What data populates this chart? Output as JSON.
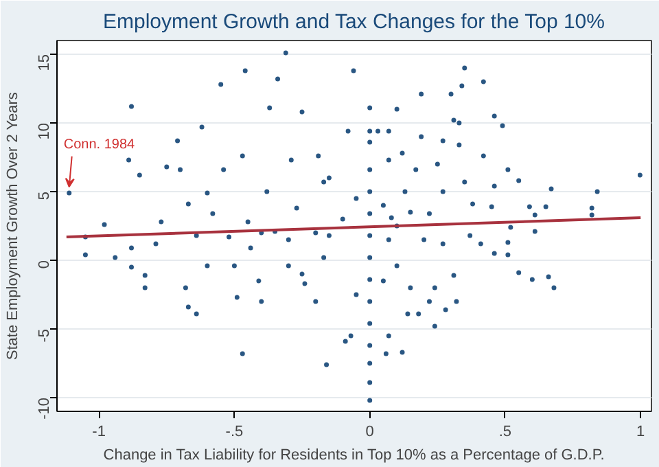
{
  "chart_data": {
    "type": "scatter",
    "title": "Employment Growth and Tax Changes for the Top 10%",
    "xlabel": "Change in Tax Liability for Residents in Top 10% as a Percentage of G.D.P.",
    "ylabel": "State Employment Growth Over 2 Years",
    "xlim": [
      -1.155,
      1.04
    ],
    "ylim": [
      -11,
      16
    ],
    "xticks": [
      {
        "value": -1,
        "label": "-1"
      },
      {
        "value": -0.5,
        "label": "-.5"
      },
      {
        "value": 0,
        "label": "0"
      },
      {
        "value": 0.5,
        "label": ".5"
      },
      {
        "value": 1,
        "label": "1"
      }
    ],
    "yticks": [
      -10,
      -5,
      0,
      5,
      10,
      15
    ],
    "grid": "y",
    "marker": "circle",
    "annotations": [
      {
        "text": "Conn. 1984",
        "x": -1.11,
        "y": 4.9
      }
    ],
    "series": [
      {
        "color": "#2a5783",
        "x": [
          -1.11,
          -0.88,
          -1.05,
          -0.98,
          -1.05,
          -0.94,
          -0.89,
          -0.85,
          -0.88,
          -0.88,
          -0.83,
          -0.83,
          -0.75,
          -0.71,
          -0.7,
          -0.68,
          -0.67,
          -0.64,
          -0.62,
          -0.79,
          -0.77,
          -0.67,
          -0.64,
          -0.6,
          -0.6,
          -0.55,
          -0.58,
          -0.54,
          -0.52,
          -0.5,
          -0.49,
          -0.47,
          -0.46,
          -0.47,
          -0.45,
          -0.44,
          -0.41,
          -0.4,
          -0.38,
          -0.37,
          -0.35,
          -0.34,
          -0.31,
          -0.3,
          -0.29,
          -0.27,
          -0.25,
          -0.24,
          -0.2,
          -0.19,
          -0.17,
          -0.16,
          -0.15,
          -0.17,
          -0.06,
          0,
          0,
          0,
          0,
          0,
          0,
          0,
          0,
          0,
          0,
          0,
          0,
          0,
          0,
          0,
          -0.07,
          -0.09,
          -0.08,
          0.1,
          0.03,
          0.07,
          0.07,
          0.12,
          0.07,
          0.06,
          0.12,
          0.14,
          0.18,
          0.19,
          0.19,
          0.17,
          0.13,
          0.08,
          0.07,
          0.1,
          0.15,
          0.22,
          0.24,
          0.24,
          0.25,
          0.27,
          0.27,
          0.22,
          0.27,
          0.28,
          0.3,
          0.32,
          0.31,
          0.33,
          0.33,
          0.34,
          0.35,
          0.35,
          0.31,
          0.37,
          0.38,
          0.42,
          0.42,
          0.41,
          0.46,
          0.46,
          0.45,
          0.49,
          0.46,
          0.51,
          0.51,
          0.51,
          0.55,
          0.55,
          0.59,
          0.6,
          0.61,
          0.61,
          0.65,
          0.67,
          0.66,
          0.68,
          0.82,
          0.82,
          0.84,
          0.998,
          0.52,
          -0.05,
          -0.1,
          -0.2,
          0.05,
          0.1,
          -0.3,
          -0.4,
          0.2,
          -0.15,
          0.15,
          -0.25,
          0.05,
          -0.05
        ],
        "values": [
          4.9,
          11.2,
          0.4,
          2.6,
          1.7,
          0.2,
          7.3,
          6.2,
          0.9,
          -0.5,
          -1.1,
          -2.0,
          6.8,
          8.7,
          6.6,
          -2.0,
          -3.4,
          -3.9,
          9.7,
          1.2,
          2.8,
          4.1,
          1.8,
          4.9,
          -0.4,
          12.8,
          3.4,
          6.6,
          1.7,
          -0.4,
          -2.7,
          -6.8,
          13.8,
          7.6,
          2.8,
          0.9,
          -1.5,
          -3.0,
          5.0,
          11.1,
          2.1,
          13.2,
          15.1,
          -0.4,
          7.3,
          3.8,
          10.8,
          -1.7,
          -3.0,
          7.6,
          5.7,
          -7.6,
          1.8,
          0.2,
          13.8,
          11.1,
          9.4,
          8.6,
          6.6,
          5.0,
          3.4,
          1.8,
          0.2,
          -1.4,
          -3.0,
          -4.6,
          -6.2,
          -7.5,
          -8.9,
          -10.2,
          -5.5,
          -5.9,
          9.4,
          11.0,
          9.4,
          9.4,
          7.3,
          7.8,
          -5.5,
          -6.8,
          -6.7,
          -3.9,
          -3.9,
          12.1,
          9.0,
          6.6,
          5.0,
          3.1,
          1.5,
          -0.4,
          -2.0,
          -3.0,
          -4.8,
          -2.0,
          7.0,
          5.0,
          8.7,
          3.4,
          1.2,
          -3.6,
          12.1,
          -3.0,
          10.2,
          10.0,
          8.4,
          12.7,
          14.0,
          5.7,
          -1.1,
          1.8,
          4.1,
          7.6,
          13.0,
          1.2,
          5.4,
          0.5,
          3.9,
          9.8,
          10.5,
          1.3,
          0.4,
          6.6,
          -0.9,
          5.8,
          3.9,
          -1.4,
          2.1,
          3.3,
          3.9,
          5.2,
          -1.2,
          -2.0,
          3.8,
          3.3,
          5.0,
          6.2,
          2.4,
          4.5,
          3.0,
          2.0,
          4.0,
          2.5,
          1.5,
          2.0,
          1.5,
          6.0,
          3.5,
          -1.0,
          -1.5,
          -2.5
        ]
      },
      {
        "type": "line",
        "marker": "none",
        "color": "#a8323e",
        "x": [
          -1.12,
          1
        ],
        "values": [
          1.7,
          3.1
        ]
      }
    ]
  }
}
